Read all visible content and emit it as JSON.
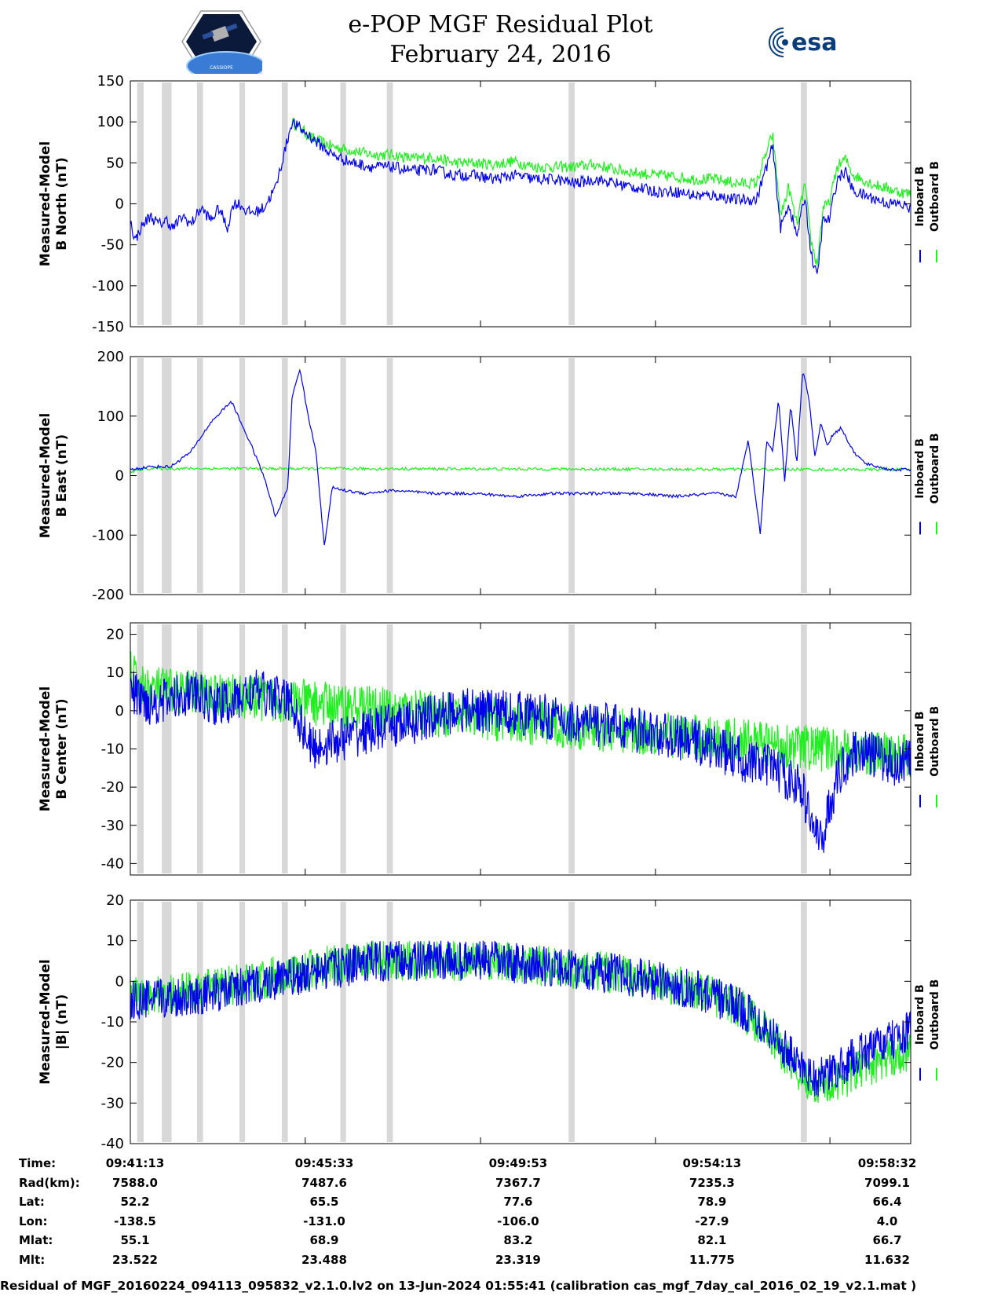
{
  "header": {
    "title": "e-POP MGF Residual Plot",
    "subtitle": "February 24, 2016",
    "left_logo_text": "CASSIOPE",
    "right_logo_text": "esa"
  },
  "colors": {
    "inboard": "#0000ee",
    "outboard": "#22ee22",
    "shade": "#d8d8d8"
  },
  "chart_data": [
    {
      "type": "line",
      "ylabel": [
        "Measured-Model",
        "B North (nT)"
      ],
      "ylim": [
        -150,
        150
      ],
      "yticks": [
        150,
        100,
        50,
        0,
        -50,
        -100,
        -150
      ],
      "legend": [
        "Inboard B",
        "Outboard B"
      ],
      "legend_position": "right",
      "series": [
        {
          "name": "Inboard B",
          "x": [
            0,
            0.12,
            0.25,
            0.4,
            0.5,
            0.7,
            0.9,
            1.05,
            1.3,
            1.5,
            1.75,
            2.0,
            2.2,
            2.4,
            2.55,
            2.7,
            2.9,
            3.1,
            3.3,
            3.6,
            4.0,
            4.5,
            5.0,
            5.5,
            6.0,
            6.5,
            7.0,
            7.5,
            8.0,
            8.5,
            9.0,
            9.5,
            10.0,
            10.5,
            11.0,
            11.5,
            12.0,
            12.5,
            13.0,
            13.5,
            14.0,
            14.5,
            15.0,
            15.5,
            15.9,
            16.1,
            16.3,
            16.5,
            16.7,
            16.85,
            17.0,
            17.15,
            17.3,
            17.5,
            17.7,
            17.9,
            18.2,
            18.5,
            18.8,
            19.0,
            19.32
          ],
          "y": [
            -20,
            -45,
            -30,
            -20,
            -15,
            -25,
            -20,
            -30,
            -15,
            -25,
            -5,
            -20,
            -5,
            -30,
            0,
            0,
            -10,
            -10,
            -5,
            20,
            100,
            80,
            60,
            50,
            45,
            45,
            40,
            42,
            35,
            35,
            30,
            35,
            30,
            30,
            25,
            30,
            25,
            20,
            15,
            15,
            10,
            10,
            5,
            5,
            70,
            -30,
            0,
            -40,
            10,
            -60,
            -90,
            -20,
            -20,
            30,
            40,
            15,
            10,
            5,
            0,
            0,
            -5
          ]
        },
        {
          "name": "Outboard B",
          "x": [
            4.0,
            4.5,
            5.0,
            5.5,
            6.0,
            6.5,
            7.0,
            7.5,
            8.0,
            8.5,
            9.0,
            9.5,
            10.0,
            10.5,
            11.0,
            11.5,
            12.0,
            12.5,
            13.0,
            13.5,
            14.0,
            14.5,
            15.0,
            15.5,
            15.9,
            16.1,
            16.3,
            16.5,
            16.7,
            16.85,
            17.0,
            17.15,
            17.3,
            17.5,
            17.7,
            17.9,
            18.2,
            18.5,
            18.8,
            19.0,
            19.32
          ],
          "y": [
            100,
            80,
            70,
            65,
            60,
            60,
            55,
            57,
            50,
            50,
            48,
            52,
            45,
            45,
            45,
            48,
            42,
            38,
            35,
            33,
            30,
            30,
            25,
            25,
            85,
            -15,
            20,
            -25,
            25,
            -45,
            -75,
            -5,
            0,
            45,
            55,
            35,
            28,
            22,
            18,
            15,
            12
          ]
        }
      ]
    },
    {
      "type": "line",
      "ylabel": [
        "Measured-Model",
        "B East (nT)"
      ],
      "ylim": [
        -200,
        200
      ],
      "yticks": [
        200,
        100,
        0,
        -100,
        -200
      ],
      "legend": [
        "Inboard B",
        "Outboard B"
      ],
      "legend_position": "right",
      "series": [
        {
          "name": "Inboard B",
          "x": [
            0,
            0.5,
            1.0,
            1.5,
            2.0,
            2.5,
            3.0,
            3.3,
            3.6,
            3.9,
            4.0,
            4.2,
            4.4,
            4.6,
            4.8,
            5.0,
            5.3,
            5.8,
            6.5,
            7.5,
            8.5,
            9.5,
            10.5,
            11.5,
            12.5,
            13.5,
            14.5,
            15.0,
            15.3,
            15.6,
            15.75,
            15.9,
            16.05,
            16.2,
            16.35,
            16.5,
            16.65,
            16.8,
            16.95,
            17.1,
            17.25,
            17.4,
            17.6,
            17.9,
            18.2,
            18.5,
            18.8,
            19.32
          ],
          "y": [
            10,
            15,
            15,
            40,
            90,
            125,
            50,
            0,
            -70,
            -20,
            130,
            180,
            100,
            40,
            -120,
            -20,
            -25,
            -30,
            -25,
            -30,
            -30,
            -35,
            -30,
            -30,
            -30,
            -35,
            -30,
            -35,
            60,
            -100,
            60,
            40,
            130,
            -10,
            120,
            20,
            180,
            130,
            30,
            90,
            50,
            70,
            80,
            40,
            20,
            15,
            10,
            10
          ]
        },
        {
          "name": "Outboard B",
          "x": [
            0,
            0.2,
            0.4,
            19.32
          ],
          "y": [
            5,
            10,
            12,
            10
          ]
        }
      ]
    },
    {
      "type": "line",
      "ylabel": [
        "Measured-Model",
        "B Center (nT)"
      ],
      "ylim": [
        -43,
        23
      ],
      "yticks": [
        20,
        10,
        0,
        -10,
        -20,
        -30,
        -40
      ],
      "legend": [
        "Inboard B",
        "Outboard B"
      ],
      "legend_position": "right",
      "series": [
        {
          "name": "Inboard B",
          "x": [
            0,
            0.5,
            1.0,
            1.5,
            2.0,
            2.5,
            3.0,
            3.5,
            4.0,
            4.5,
            5.0,
            6.0,
            7.0,
            8.0,
            9.0,
            10.0,
            11.0,
            12.0,
            13.0,
            14.0,
            15.0,
            15.5,
            16.0,
            16.3,
            16.6,
            16.9,
            17.1,
            17.3,
            17.6,
            18.0,
            18.5,
            19.0,
            19.32
          ],
          "y": [
            5,
            2,
            3,
            5,
            2,
            2,
            5,
            4,
            2,
            -10,
            -8,
            -5,
            -3,
            0,
            0,
            -1,
            -3,
            -4,
            -6,
            -8,
            -12,
            -14,
            -15,
            -18,
            -20,
            -30,
            -35,
            -25,
            -15,
            -10,
            -12,
            -14,
            -12
          ]
        },
        {
          "name": "Outboard B",
          "x": [
            0,
            0.3,
            19.32
          ],
          "y": [
            10,
            6,
            -12
          ]
        }
      ]
    },
    {
      "type": "line",
      "ylabel": [
        "Measured-Model",
        "|B| (nT)"
      ],
      "ylim": [
        -40,
        20
      ],
      "yticks": [
        20,
        10,
        0,
        -10,
        -20,
        -30,
        -40
      ],
      "legend": [
        "Inboard B",
        "Outboard B"
      ],
      "legend_position": "right",
      "series": [
        {
          "name": "Inboard B",
          "x": [
            0,
            1.0,
            2.0,
            3.0,
            4.0,
            5.0,
            6.0,
            7.0,
            8.0,
            9.0,
            10.0,
            11.0,
            12.0,
            13.0,
            14.0,
            15.0,
            15.5,
            16.0,
            16.5,
            17.0,
            17.5,
            18.0,
            18.5,
            19.0,
            19.32
          ],
          "y": [
            -5,
            -4,
            -3,
            -1,
            1,
            3,
            5,
            5,
            5,
            5,
            4,
            3,
            2,
            0,
            -2,
            -6,
            -9,
            -14,
            -20,
            -24,
            -22,
            -18,
            -16,
            -14,
            -12
          ]
        },
        {
          "name": "Outboard B",
          "x": [
            0,
            1.0,
            2.0,
            3.0,
            4.0,
            5.0,
            6.0,
            7.0,
            8.0,
            9.0,
            10.0,
            11.0,
            12.0,
            13.0,
            14.0,
            15.0,
            15.5,
            16.0,
            16.5,
            17.0,
            17.5,
            18.0,
            18.5,
            19.0,
            19.32
          ],
          "y": [
            -4,
            -3,
            -2,
            0,
            2,
            4,
            5,
            5,
            5,
            5,
            4,
            3,
            2,
            0,
            -2,
            -6,
            -10,
            -15,
            -22,
            -26,
            -25,
            -22,
            -20,
            -18,
            -17
          ]
        }
      ]
    }
  ],
  "shaded_intervals": [
    [
      0.17,
      0.33
    ],
    [
      0.78,
      1.02
    ],
    [
      1.65,
      1.8
    ],
    [
      2.7,
      2.84
    ],
    [
      3.75,
      3.9
    ],
    [
      5.2,
      5.34
    ],
    [
      6.35,
      6.5
    ],
    [
      10.85,
      11.0
    ],
    [
      16.6,
      16.75
    ]
  ],
  "xaxis": {
    "xlim": [
      0,
      19.32
    ],
    "tick_positions_min": [
      0,
      4.33,
      8.67,
      13.0,
      17.32
    ],
    "labels": [
      "09:41:13",
      "09:45:33",
      "09:49:53",
      "09:54:13",
      "09:58:32"
    ]
  },
  "table": {
    "columns_x_min": [
      0,
      4.8,
      9.6,
      14.4,
      19.32
    ],
    "rows": [
      {
        "label": "Time:",
        "values": [
          "09:41:13",
          "09:45:33",
          "09:49:53",
          "09:54:13",
          "09:58:32"
        ]
      },
      {
        "label": "Rad(km):",
        "values": [
          "7588.0",
          "7487.6",
          "7367.7",
          "7235.3",
          "7099.1"
        ]
      },
      {
        "label": "Lat:",
        "values": [
          "52.2",
          "65.5",
          "77.6",
          "78.9",
          "66.4"
        ]
      },
      {
        "label": "Lon:",
        "values": [
          "-138.5",
          "-131.0",
          "-106.0",
          "-27.9",
          "4.0"
        ]
      },
      {
        "label": "Mlat:",
        "values": [
          "55.1",
          "68.9",
          "83.2",
          "82.1",
          "66.7"
        ]
      },
      {
        "label": "Mlt:",
        "values": [
          "23.522",
          "23.488",
          "23.319",
          "11.775",
          "11.632"
        ]
      }
    ]
  },
  "footer": {
    "caption": "Residual of MGF_20160224_094113_095832_v2.1.0.lv2 on 13-Jun-2024 01:55:41 (calibration cas_mgf_7day_cal_2016_02_19_v2.1.mat )"
  }
}
